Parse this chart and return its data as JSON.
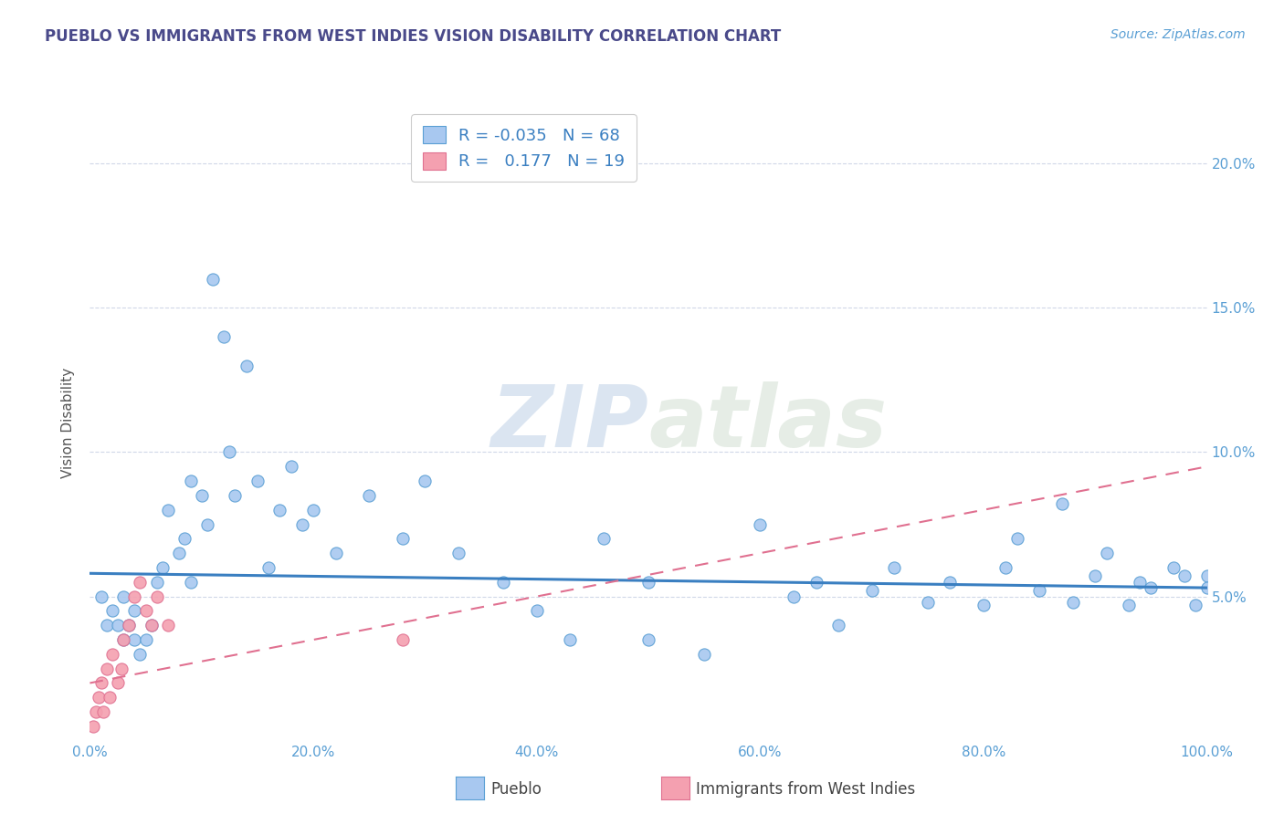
{
  "title": "PUEBLO VS IMMIGRANTS FROM WEST INDIES VISION DISABILITY CORRELATION CHART",
  "source": "Source: ZipAtlas.com",
  "ylabel": "Vision Disability",
  "watermark_zip": "ZIP",
  "watermark_atlas": "atlas",
  "xlim": [
    0.0,
    1.0
  ],
  "ylim": [
    0.0,
    0.22
  ],
  "xticks": [
    0.0,
    0.2,
    0.4,
    0.6,
    0.8,
    1.0
  ],
  "xtick_labels": [
    "0.0%",
    "20.0%",
    "40.0%",
    "60.0%",
    "80.0%",
    "100.0%"
  ],
  "yticks": [
    0.05,
    0.1,
    0.15,
    0.2
  ],
  "ytick_labels_right": [
    "5.0%",
    "10.0%",
    "15.0%",
    "20.0%"
  ],
  "legend1_label": "Pueblo",
  "legend2_label": "Immigrants from West Indies",
  "legend1_face": "#a8c8f0",
  "legend2_face": "#f4a0b0",
  "R1": -0.035,
  "N1": 68,
  "R2": 0.177,
  "N2": 19,
  "blue_line_color": "#3a7fc1",
  "pink_line_color": "#e07090",
  "blue_dot_face": "#a8c8f0",
  "blue_dot_edge": "#5a9fd4",
  "pink_dot_face": "#f4a0b0",
  "pink_dot_edge": "#e07090",
  "title_color": "#4a4a8a",
  "axis_tick_color": "#5a9fd4",
  "grid_color": "#d0d8e8",
  "legend_text_dark": "#333355",
  "legend_text_blue": "#3a7fc1",
  "pueblo_x": [
    0.01,
    0.015,
    0.02,
    0.025,
    0.03,
    0.03,
    0.035,
    0.04,
    0.04,
    0.045,
    0.05,
    0.055,
    0.06,
    0.065,
    0.07,
    0.08,
    0.085,
    0.09,
    0.09,
    0.1,
    0.105,
    0.11,
    0.12,
    0.125,
    0.13,
    0.14,
    0.15,
    0.16,
    0.17,
    0.18,
    0.19,
    0.2,
    0.22,
    0.25,
    0.28,
    0.3,
    0.33,
    0.37,
    0.4,
    0.43,
    0.46,
    0.5,
    0.55,
    0.6,
    0.63,
    0.65,
    0.67,
    0.7,
    0.72,
    0.75,
    0.77,
    0.8,
    0.82,
    0.83,
    0.85,
    0.87,
    0.88,
    0.9,
    0.91,
    0.93,
    0.94,
    0.95,
    0.97,
    0.98,
    0.99,
    1.0,
    1.0,
    0.5
  ],
  "pueblo_y": [
    0.05,
    0.04,
    0.045,
    0.04,
    0.05,
    0.035,
    0.04,
    0.045,
    0.035,
    0.03,
    0.035,
    0.04,
    0.055,
    0.06,
    0.08,
    0.065,
    0.07,
    0.055,
    0.09,
    0.085,
    0.075,
    0.16,
    0.14,
    0.1,
    0.085,
    0.13,
    0.09,
    0.06,
    0.08,
    0.095,
    0.075,
    0.08,
    0.065,
    0.085,
    0.07,
    0.09,
    0.065,
    0.055,
    0.045,
    0.035,
    0.07,
    0.055,
    0.03,
    0.075,
    0.05,
    0.055,
    0.04,
    0.052,
    0.06,
    0.048,
    0.055,
    0.047,
    0.06,
    0.07,
    0.052,
    0.082,
    0.048,
    0.057,
    0.065,
    0.047,
    0.055,
    0.053,
    0.06,
    0.057,
    0.047,
    0.057,
    0.053,
    0.035
  ],
  "westindies_x": [
    0.003,
    0.005,
    0.008,
    0.01,
    0.012,
    0.015,
    0.018,
    0.02,
    0.025,
    0.028,
    0.03,
    0.035,
    0.04,
    0.045,
    0.05,
    0.055,
    0.06,
    0.07,
    0.28
  ],
  "westindies_y": [
    0.005,
    0.01,
    0.015,
    0.02,
    0.01,
    0.025,
    0.015,
    0.03,
    0.02,
    0.025,
    0.035,
    0.04,
    0.05,
    0.055,
    0.045,
    0.04,
    0.05,
    0.04,
    0.035
  ],
  "pueblo_trend_x": [
    0.0,
    1.0
  ],
  "pueblo_trend_y": [
    0.058,
    0.053
  ],
  "wi_trend_x": [
    0.0,
    1.0
  ],
  "wi_trend_y": [
    0.02,
    0.095
  ]
}
